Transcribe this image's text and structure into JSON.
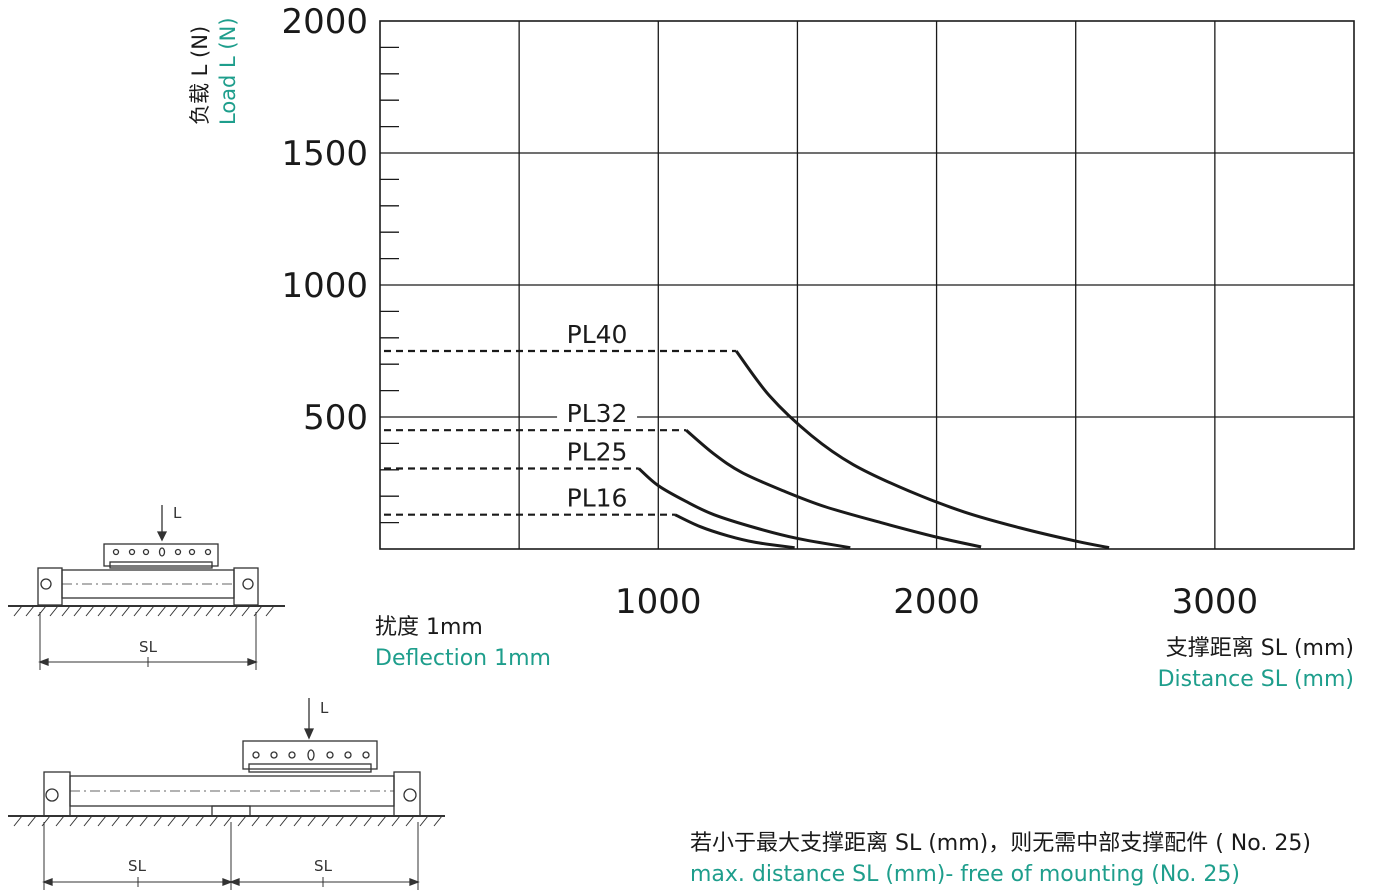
{
  "chart_data": {
    "type": "line",
    "ylabel_cn": "负载 L (N)",
    "ylabel_en": "Load L (N)",
    "xlabel_cn": "支撑距离 SL (mm)",
    "xlabel_en": "Distance SL (mm)",
    "deflection_cn": "扰度 1mm",
    "deflection_en": "Deflection 1mm",
    "note_cn": "若小于最大支撑距离 SL (mm)，则无需中部支撑配件 ( No. 25)",
    "note_en": "max. distance SL (mm)- free of mounting (No. 25)",
    "xlim": [
      0,
      3500
    ],
    "ylim": [
      0,
      2000
    ],
    "x_ticks": [
      "1000",
      "2000",
      "3000"
    ],
    "y_ticks": [
      "500",
      "1000",
      "1500",
      "2000"
    ],
    "grid": true,
    "series": [
      {
        "name": "PL40",
        "flat_load": 750,
        "flat_until": 1280,
        "x": [
          1280,
          1400,
          1550,
          1700,
          1900,
          2100,
          2300,
          2500,
          2620
        ],
        "y": [
          750,
          580,
          430,
          320,
          220,
          140,
          80,
          30,
          5
        ]
      },
      {
        "name": "PL32",
        "flat_load": 450,
        "flat_until": 1100,
        "x": [
          1100,
          1200,
          1300,
          1450,
          1600,
          1800,
          2000,
          2160
        ],
        "y": [
          450,
          360,
          290,
          220,
          160,
          100,
          45,
          8
        ]
      },
      {
        "name": "PL25",
        "flat_load": 305,
        "flat_until": 930,
        "x": [
          930,
          1000,
          1100,
          1200,
          1350,
          1500,
          1690
        ],
        "y": [
          305,
          240,
          180,
          130,
          80,
          40,
          5
        ]
      },
      {
        "name": "PL16",
        "flat_load": 130,
        "flat_until": 1060,
        "x": [
          1060,
          1150,
          1250,
          1350,
          1490
        ],
        "y": [
          130,
          85,
          50,
          25,
          5
        ]
      }
    ]
  },
  "diagrams": {
    "top": {
      "load_label": "L",
      "span_label": "SL"
    },
    "bottom": {
      "load_label": "L",
      "span_labels": [
        "SL",
        "SL"
      ]
    }
  }
}
